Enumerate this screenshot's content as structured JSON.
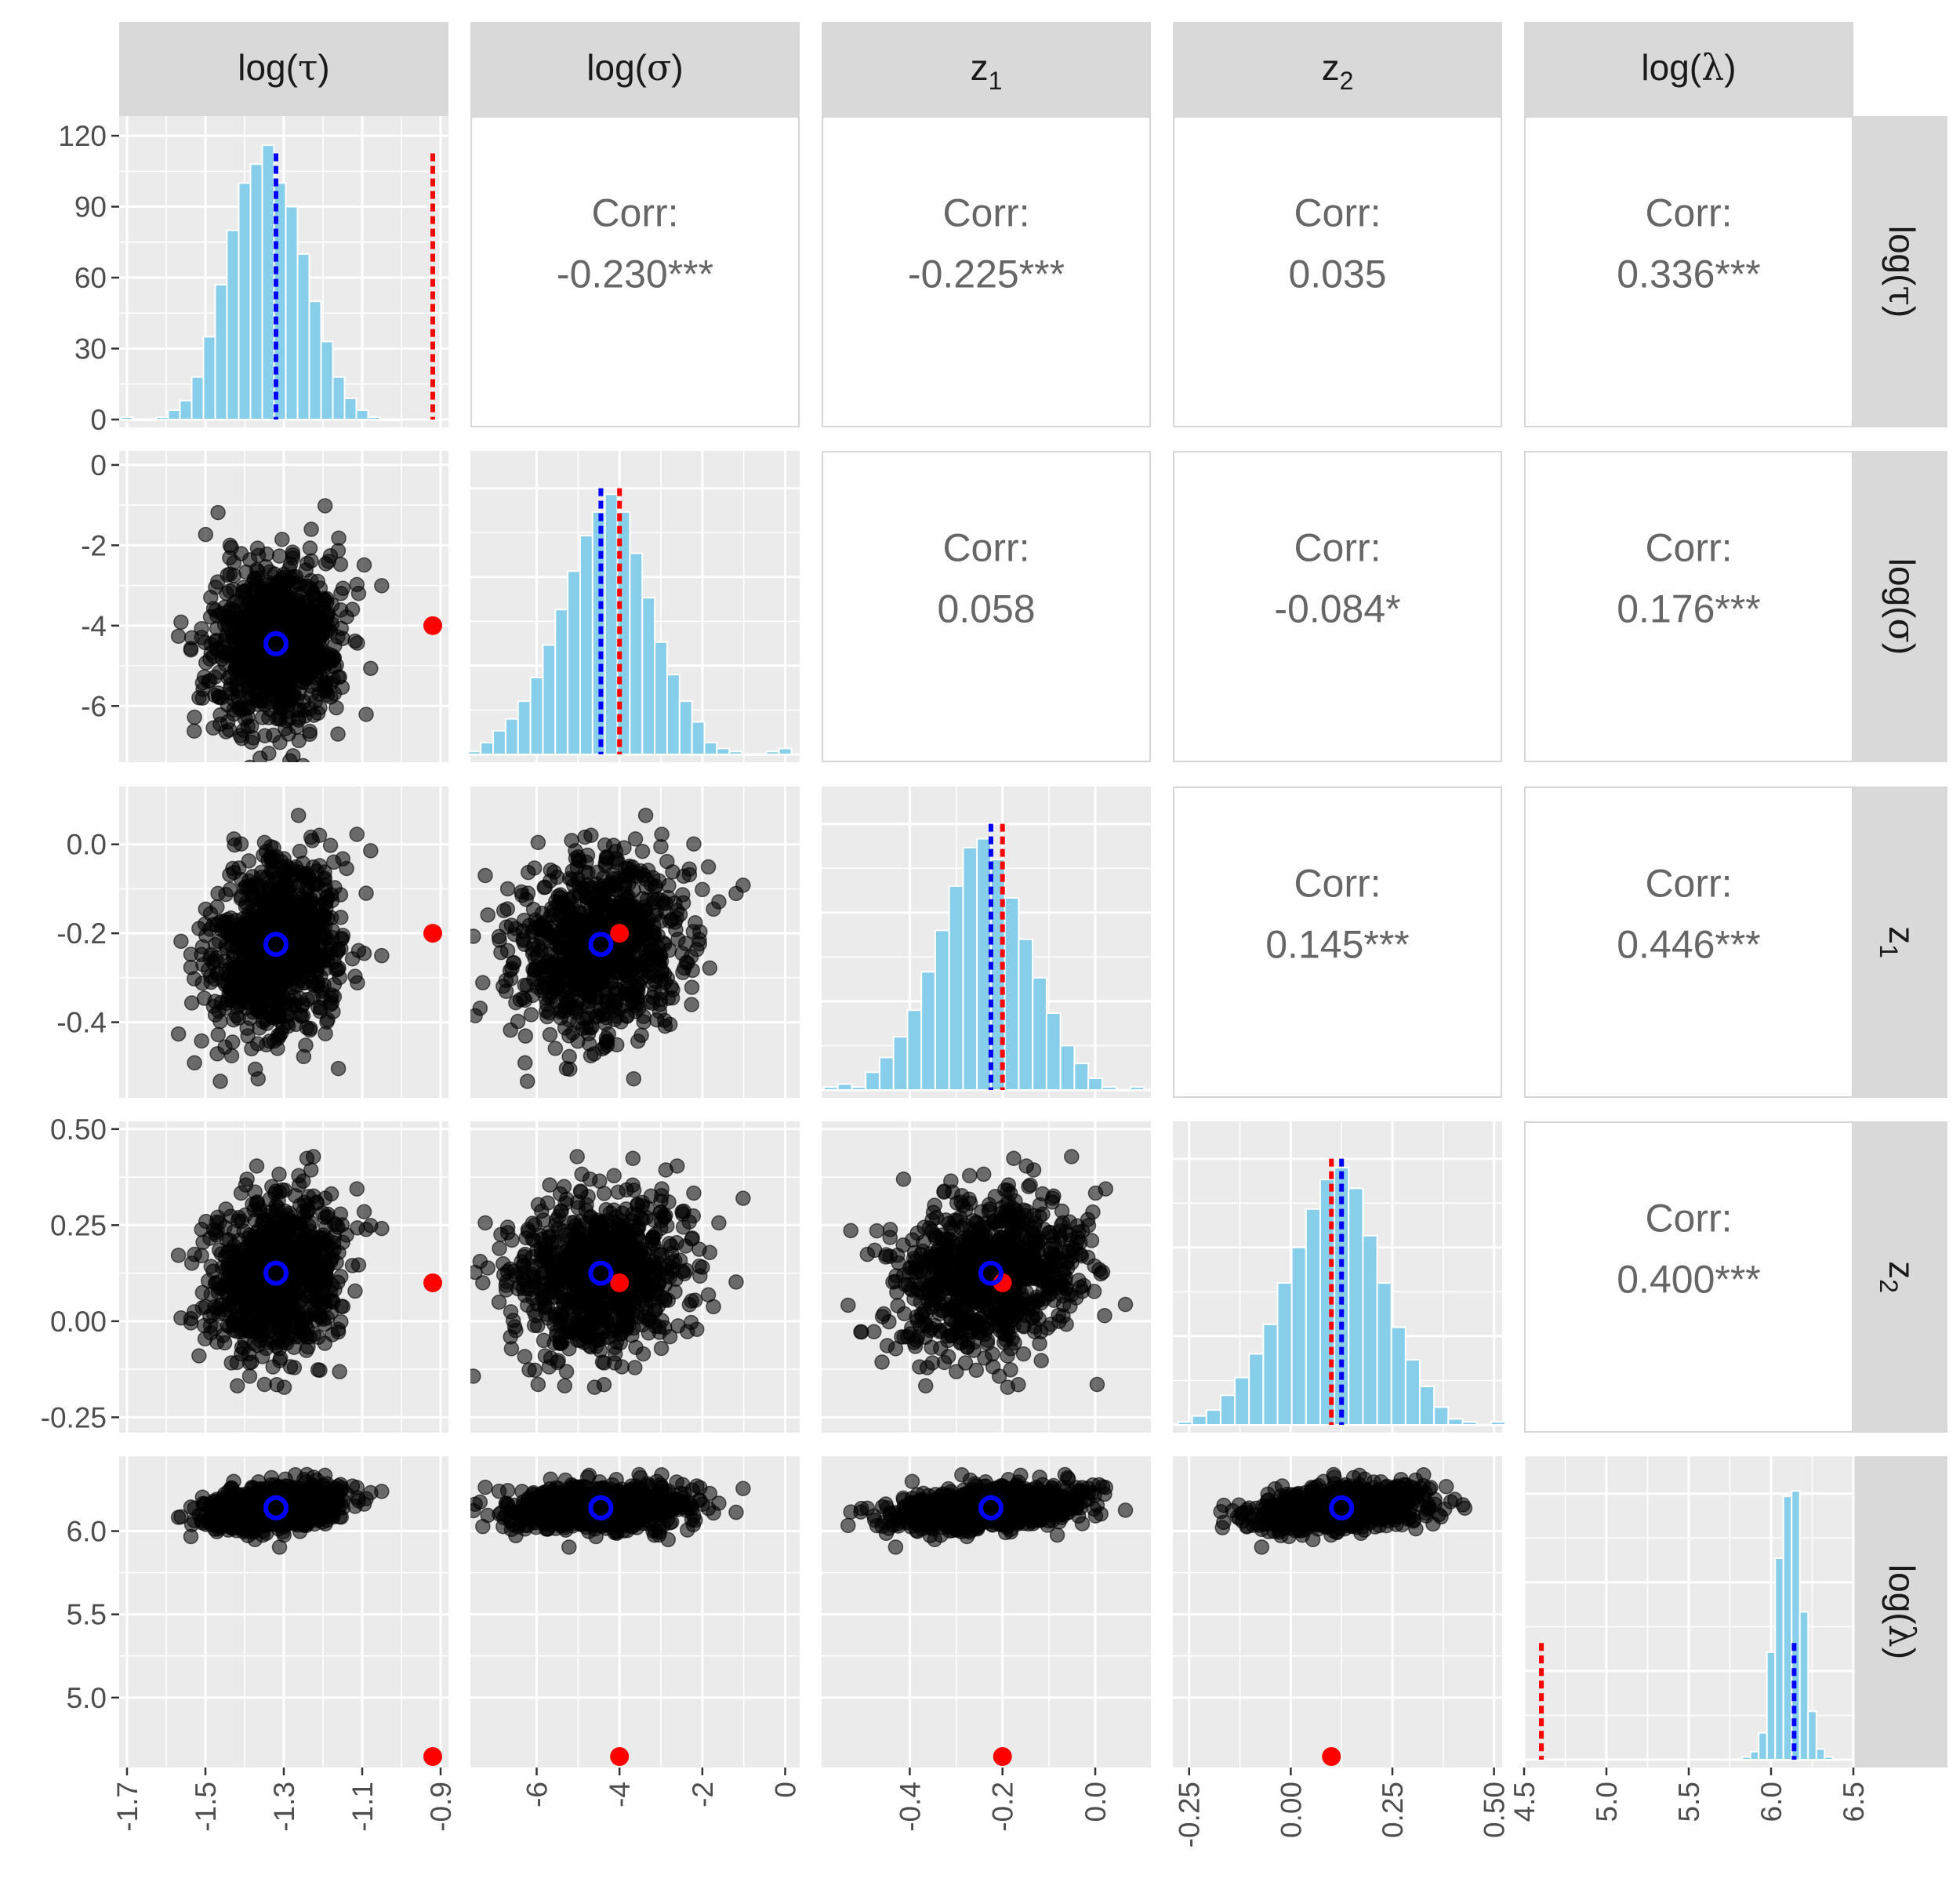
{
  "chart_data": {
    "type": "scatter-matrix",
    "variables": [
      "log(τ)",
      "log(σ)",
      "z1",
      "z2",
      "log(λ)"
    ],
    "strip_labels": [
      {
        "base": "log(",
        "sym": "τ",
        "tail": ")",
        "sub": ""
      },
      {
        "base": "log(",
        "sym": "σ",
        "tail": ")",
        "sub": ""
      },
      {
        "base": "z",
        "sym": "",
        "tail": "",
        "sub": "1"
      },
      {
        "base": "z",
        "sym": "",
        "tail": "",
        "sub": "2"
      },
      {
        "base": "log(",
        "sym": "λ",
        "tail": ")",
        "sub": ""
      }
    ],
    "axes": [
      {
        "range": [
          -1.72,
          -0.88
        ],
        "ticks": [
          -1.7,
          -1.5,
          -1.3,
          -1.1,
          -0.9
        ],
        "tick_labels": [
          "-1.7",
          "-1.5",
          "-1.3",
          "-1.1",
          "-0.9"
        ],
        "y_range": [
          -7.4,
          0.35
        ],
        "y_ticks": [
          0,
          -2,
          -4,
          -6
        ],
        "y_tick_labels": [
          "0",
          "-2",
          "-4",
          "-6"
        ]
      },
      {
        "range": [
          -7.6,
          0.35
        ],
        "ticks": [
          -6,
          -4,
          -2,
          0
        ],
        "tick_labels": [
          "-6",
          "-4",
          "-2",
          "0"
        ],
        "y_range": [
          -7.4,
          0.35
        ],
        "y_ticks": [
          0,
          -2,
          -4,
          -6
        ],
        "y_tick_labels": [
          "0",
          "-2",
          "-4",
          "-6"
        ]
      },
      {
        "range": [
          -0.59,
          0.12
        ],
        "ticks": [
          -0.4,
          -0.2,
          0.0
        ],
        "tick_labels": [
          "-0.4",
          "-0.2",
          "0.0"
        ],
        "y_range": [
          -0.57,
          0.13
        ],
        "y_ticks": [
          0.0,
          -0.2,
          -0.4
        ],
        "y_tick_labels": [
          "0.0",
          "-0.2",
          "-0.4"
        ]
      },
      {
        "range": [
          -0.29,
          0.52
        ],
        "ticks": [
          -0.25,
          0.0,
          0.25,
          0.5
        ],
        "tick_labels": [
          "-0.25",
          "0.00",
          "0.25",
          "0.50"
        ],
        "y_range": [
          -0.29,
          0.52
        ],
        "y_ticks": [
          0.5,
          0.25,
          0.0,
          -0.25
        ],
        "y_tick_labels": [
          "0.50",
          "0.25",
          "0.00",
          "-0.25"
        ]
      },
      {
        "range": [
          4.5,
          6.5
        ],
        "ticks": [
          4.5,
          5.0,
          5.5,
          6.0,
          6.5
        ],
        "tick_labels": [
          "4.5",
          "5.0",
          "5.5",
          "6.0",
          "6.5"
        ],
        "y_range": [
          4.58,
          6.45
        ],
        "y_ticks": [
          6.0,
          5.5,
          5.0
        ],
        "y_tick_labels": [
          "6.0",
          "5.5",
          "5.0"
        ]
      }
    ],
    "posterior_mean": [
      -1.32,
      -4.45,
      -0.225,
      0.125,
      6.14
    ],
    "true_values": [
      -0.92,
      -4.0,
      -0.2,
      0.1,
      4.605
    ],
    "correlations": [
      {
        "row": 0,
        "col": 1,
        "label": "Corr:",
        "value": "-0.230***"
      },
      {
        "row": 0,
        "col": 2,
        "label": "Corr:",
        "value": "-0.225***"
      },
      {
        "row": 0,
        "col": 3,
        "label": "Corr:",
        "value": "0.035"
      },
      {
        "row": 0,
        "col": 4,
        "label": "Corr:",
        "value": "0.336***"
      },
      {
        "row": 1,
        "col": 2,
        "label": "Corr:",
        "value": "0.058"
      },
      {
        "row": 1,
        "col": 3,
        "label": "Corr:",
        "value": "-0.084*"
      },
      {
        "row": 1,
        "col": 4,
        "label": "Corr:",
        "value": "0.176***"
      },
      {
        "row": 2,
        "col": 3,
        "label": "Corr:",
        "value": "0.145***"
      },
      {
        "row": 2,
        "col": 4,
        "label": "Corr:",
        "value": "0.446***"
      },
      {
        "row": 3,
        "col": 4,
        "label": "Corr:",
        "value": "0.400***"
      }
    ],
    "histograms": [
      {
        "var": "log(τ)",
        "y_ticks": [
          0,
          30,
          60,
          90,
          120
        ],
        "y_tick_labels": [
          "0",
          "30",
          "60",
          "90",
          "120"
        ],
        "y_max": 125,
        "bins": [
          [
            -1.7,
            1
          ],
          [
            -1.67,
            0
          ],
          [
            -1.64,
            0
          ],
          [
            -1.61,
            1
          ],
          [
            -1.58,
            4
          ],
          [
            -1.55,
            8
          ],
          [
            -1.52,
            18
          ],
          [
            -1.49,
            35
          ],
          [
            -1.46,
            57
          ],
          [
            -1.43,
            80
          ],
          [
            -1.4,
            100
          ],
          [
            -1.37,
            108
          ],
          [
            -1.34,
            116
          ],
          [
            -1.31,
            100
          ],
          [
            -1.28,
            90
          ],
          [
            -1.25,
            70
          ],
          [
            -1.22,
            50
          ],
          [
            -1.19,
            33
          ],
          [
            -1.16,
            18
          ],
          [
            -1.13,
            9
          ],
          [
            -1.1,
            4
          ],
          [
            -1.07,
            1
          ],
          [
            -1.04,
            0
          ],
          [
            -1.01,
            0
          ]
        ]
      },
      {
        "var": "log(σ)",
        "y_max": 100,
        "bins": [
          [
            -7.5,
            1
          ],
          [
            -7.2,
            4
          ],
          [
            -6.9,
            8
          ],
          [
            -6.6,
            12
          ],
          [
            -6.3,
            18
          ],
          [
            -6.0,
            26
          ],
          [
            -5.7,
            37
          ],
          [
            -5.4,
            49
          ],
          [
            -5.1,
            62
          ],
          [
            -4.8,
            74
          ],
          [
            -4.5,
            82
          ],
          [
            -4.2,
            88
          ],
          [
            -3.9,
            82
          ],
          [
            -3.6,
            68
          ],
          [
            -3.3,
            53
          ],
          [
            -3.0,
            38
          ],
          [
            -2.7,
            27
          ],
          [
            -2.4,
            18
          ],
          [
            -2.1,
            11
          ],
          [
            -1.8,
            4
          ],
          [
            -1.5,
            2
          ],
          [
            -1.2,
            1
          ],
          [
            -0.9,
            0
          ],
          [
            -0.6,
            0
          ],
          [
            -0.3,
            1
          ],
          [
            0.0,
            2
          ]
        ]
      },
      {
        "var": "z1",
        "y_max": 100,
        "bins": [
          [
            -0.57,
            1
          ],
          [
            -0.54,
            2
          ],
          [
            -0.51,
            1
          ],
          [
            -0.48,
            6
          ],
          [
            -0.45,
            11
          ],
          [
            -0.42,
            18
          ],
          [
            -0.39,
            27
          ],
          [
            -0.36,
            40
          ],
          [
            -0.33,
            54
          ],
          [
            -0.3,
            69
          ],
          [
            -0.27,
            82
          ],
          [
            -0.24,
            85
          ],
          [
            -0.21,
            78
          ],
          [
            -0.18,
            65
          ],
          [
            -0.15,
            51
          ],
          [
            -0.12,
            38
          ],
          [
            -0.09,
            26
          ],
          [
            -0.06,
            15
          ],
          [
            -0.03,
            9
          ],
          [
            0.0,
            4
          ],
          [
            0.03,
            1
          ],
          [
            0.06,
            0
          ],
          [
            0.09,
            1
          ]
        ]
      },
      {
        "var": "z2",
        "y_max": 100,
        "bins": [
          [
            -0.26,
            1
          ],
          [
            -0.225,
            3
          ],
          [
            -0.19,
            5
          ],
          [
            -0.155,
            10
          ],
          [
            -0.12,
            16
          ],
          [
            -0.085,
            24
          ],
          [
            -0.05,
            34
          ],
          [
            -0.015,
            48
          ],
          [
            0.02,
            60
          ],
          [
            0.055,
            73
          ],
          [
            0.09,
            83
          ],
          [
            0.125,
            87
          ],
          [
            0.16,
            80
          ],
          [
            0.195,
            64
          ],
          [
            0.23,
            48
          ],
          [
            0.265,
            33
          ],
          [
            0.3,
            22
          ],
          [
            0.335,
            13
          ],
          [
            0.37,
            6
          ],
          [
            0.405,
            2
          ],
          [
            0.44,
            1
          ],
          [
            0.475,
            0
          ],
          [
            0.51,
            1
          ]
        ]
      },
      {
        "var": "log(λ)",
        "y_max": 110,
        "bins": [
          [
            5.85,
            1
          ],
          [
            5.9,
            3
          ],
          [
            5.95,
            10
          ],
          [
            6.0,
            40
          ],
          [
            6.05,
            75
          ],
          [
            6.1,
            98
          ],
          [
            6.15,
            100
          ],
          [
            6.2,
            55
          ],
          [
            6.25,
            18
          ],
          [
            6.3,
            4
          ],
          [
            6.35,
            1
          ]
        ]
      }
    ],
    "legend": "none",
    "marker_legend": {
      "blue_open_circle": "posterior mean",
      "red_dot": "true value"
    }
  },
  "colors": {
    "panel_bg": "#EBEBEB",
    "grid": "#FFFFFF",
    "strip_bg": "#D9D9D9",
    "bar_fill": "#87CEEB",
    "bar_stroke": "#FFFFFF",
    "points": "#000000",
    "mean_marker": "#0000FF",
    "true_marker": "#FF0000",
    "axis_text": "#4D4D4D",
    "corr_text": "#666666",
    "strip_text": "#1A1A1A"
  }
}
